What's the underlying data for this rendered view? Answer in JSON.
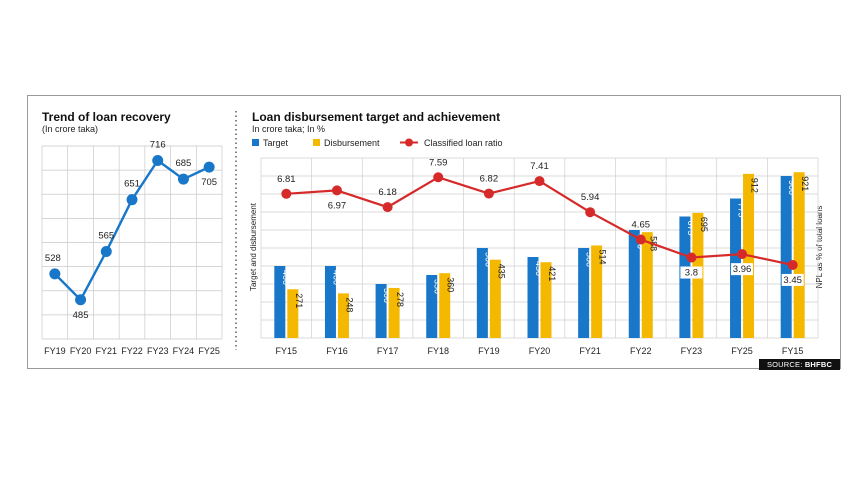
{
  "chart_data": [
    {
      "type": "line",
      "title": "Trend of loan recovery",
      "subtitle": "(In crore taka)",
      "categories": [
        "FY19",
        "FY20",
        "FY21",
        "FY22",
        "FY23",
        "FY24",
        "FY25"
      ],
      "values": [
        528,
        485,
        565,
        651,
        716,
        685,
        705
      ],
      "ylim": [
        420,
        740
      ],
      "grid": true,
      "colors": {
        "line": "#1877c9",
        "point": "#1877c9"
      }
    },
    {
      "type": "bar",
      "title": "Loan disbursement target and achievement",
      "subtitle": "In crore taka; In %",
      "categories": [
        "FY15",
        "FY16",
        "FY17",
        "FY18",
        "FY19",
        "FY20",
        "FY21",
        "FY22",
        "FY23",
        "FY25",
        "FY15"
      ],
      "series": [
        {
          "name": "Target",
          "color": "#1877c9",
          "values": [
            400,
            400,
            300,
            350,
            500,
            450,
            500,
            600,
            675,
            775,
            900
          ]
        },
        {
          "name": "Disbursement",
          "color": "#f5b800",
          "values": [
            271,
            248,
            278,
            360,
            435,
            421,
            514,
            588,
            695,
            912,
            921
          ]
        }
      ],
      "line_series": {
        "name": "Classified loan ratio",
        "color": "#d62a2a",
        "values": [
          6.81,
          6.97,
          6.18,
          7.59,
          6.82,
          7.41,
          5.94,
          4.65,
          3.8,
          3.96,
          3.45
        ],
        "ylim": [
          0,
          8.5
        ]
      },
      "ylim": [
        0,
        1000
      ],
      "ylabel": "Target and disbursement",
      "y2label": "NPL as % of total loans",
      "grid": true,
      "legend": "top-left"
    }
  ],
  "source": {
    "prefix": "SOURCE:",
    "name": "BHFBC"
  }
}
